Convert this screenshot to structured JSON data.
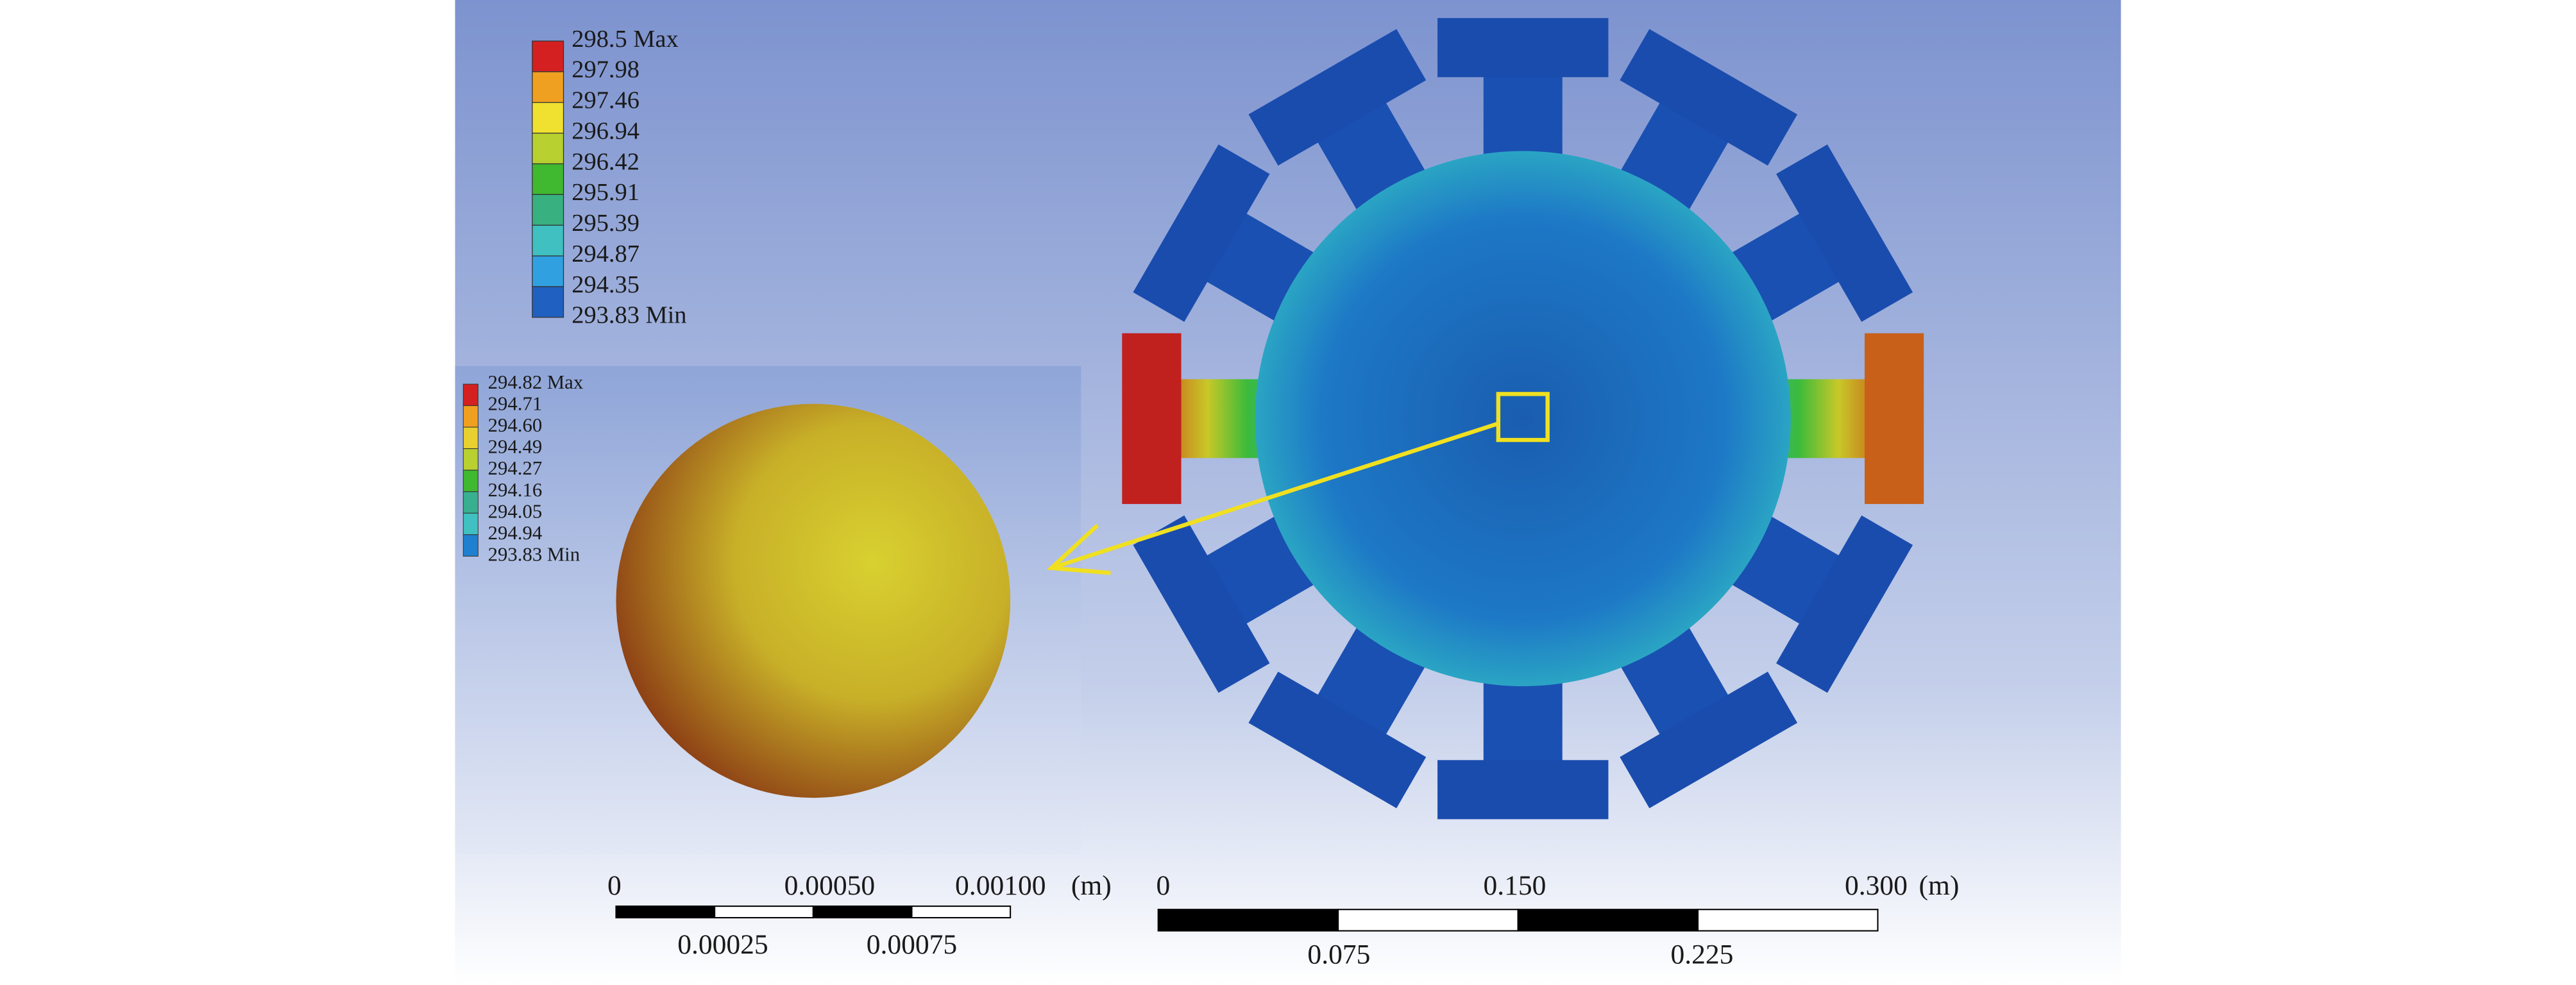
{
  "legend_main": {
    "labels": [
      "298.5 Max",
      "297.98",
      "297.46",
      "296.94",
      "296.42",
      "295.91",
      "295.39",
      "294.87",
      "294.35",
      "293.83 Min"
    ]
  },
  "legend_inset": {
    "labels": [
      "294.82 Max",
      "294.71",
      "294.60",
      "294.49",
      "294.27",
      "294.16",
      "294.05",
      "294.94",
      "293.83 Min"
    ]
  },
  "scale_inset": {
    "top_labels": [
      "0",
      "0.00050",
      "0.00100"
    ],
    "unit": "(m)",
    "bottom_labels": [
      "0.00025",
      "0.00075"
    ]
  },
  "scale_main": {
    "top_labels": [
      "0",
      "0.150",
      "0.300"
    ],
    "unit": "(m)",
    "bottom_labels": [
      "0.075",
      "0.225"
    ]
  }
}
